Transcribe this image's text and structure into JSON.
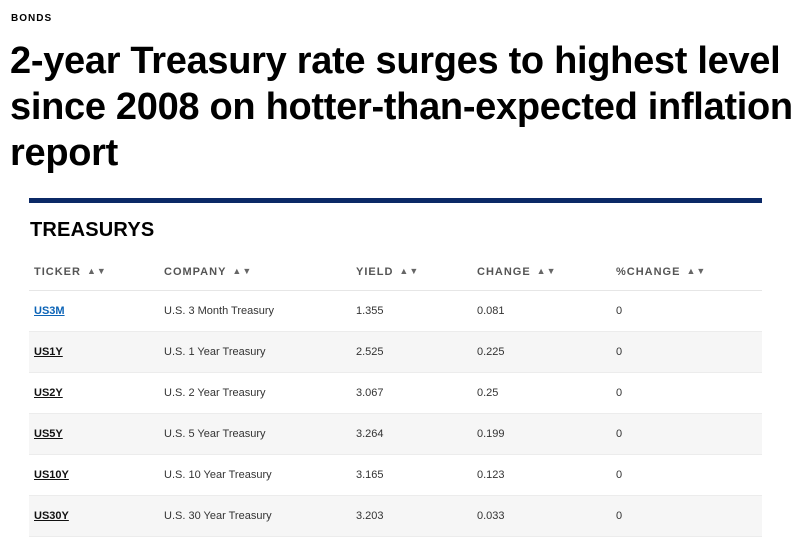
{
  "article": {
    "kicker": "BONDS",
    "headline": "2-year Treasury rate surges to highest level since 2008 on hotter-than-expected inflation report"
  },
  "module": {
    "title": "TREASURYS",
    "columns": [
      "TICKER",
      "COMPANY",
      "YIELD",
      "CHANGE",
      "%CHANGE"
    ],
    "sort_glyph": "▲▼",
    "accent_color": "#0b2966",
    "link_color": "#0b63b6",
    "rows": [
      {
        "ticker": "US3M",
        "company": "U.S. 3 Month Treasury",
        "yield": "1.355",
        "change": "0.081",
        "pct_change": "0"
      },
      {
        "ticker": "US1Y",
        "company": "U.S. 1 Year Treasury",
        "yield": "2.525",
        "change": "0.225",
        "pct_change": "0"
      },
      {
        "ticker": "US2Y",
        "company": "U.S. 2 Year Treasury",
        "yield": "3.067",
        "change": "0.25",
        "pct_change": "0"
      },
      {
        "ticker": "US5Y",
        "company": "U.S. 5 Year Treasury",
        "yield": "3.264",
        "change": "0.199",
        "pct_change": "0"
      },
      {
        "ticker": "US10Y",
        "company": "U.S. 10 Year Treasury",
        "yield": "3.165",
        "change": "0.123",
        "pct_change": "0"
      },
      {
        "ticker": "US30Y",
        "company": "U.S. 30 Year Treasury",
        "yield": "3.203",
        "change": "0.033",
        "pct_change": "0"
      }
    ]
  }
}
